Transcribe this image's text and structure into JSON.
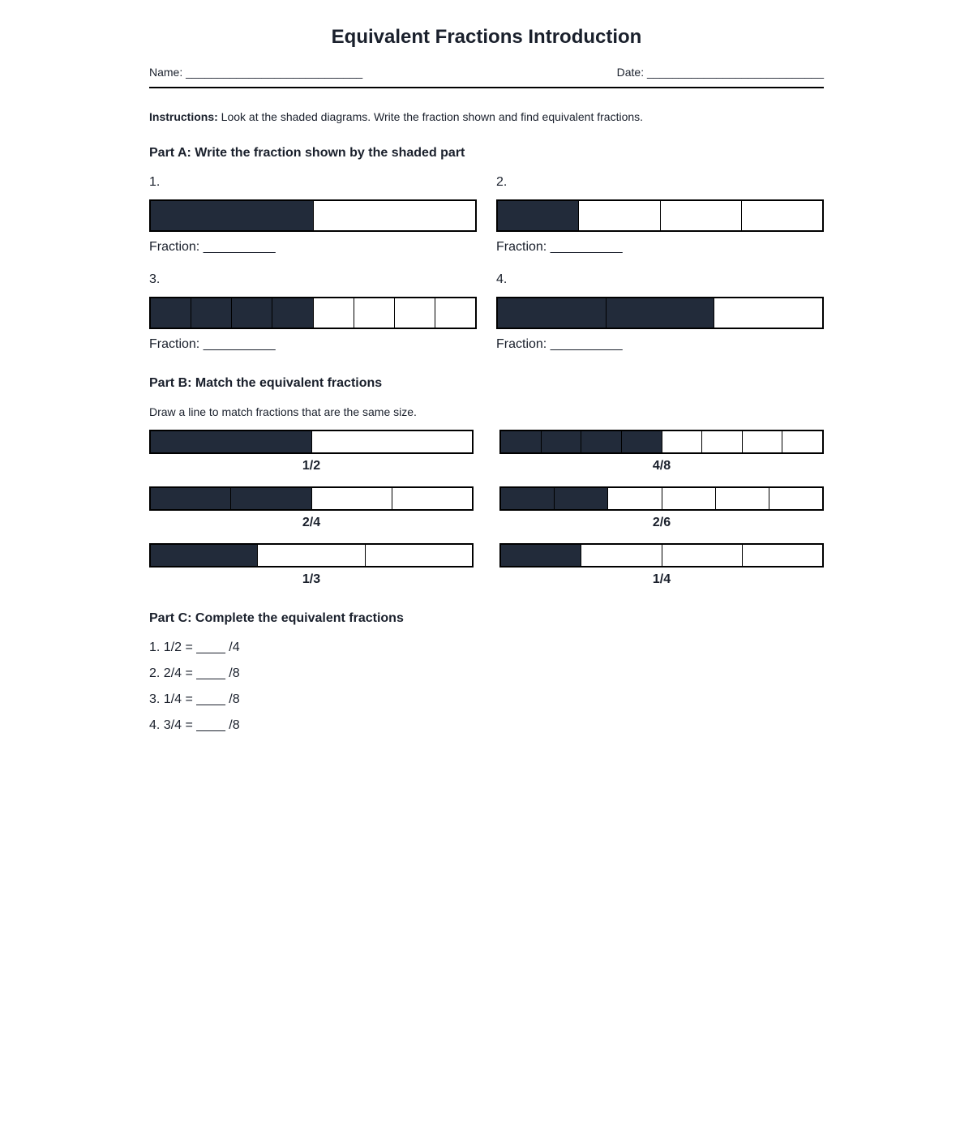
{
  "title": "Equivalent Fractions Introduction",
  "header": {
    "name": "Name: ____________________________",
    "date": "Date: ____________________________"
  },
  "instructions": {
    "label": "Instructions:",
    "text": " Look at the shaded diagrams. Write the fraction shown and find equivalent fractions."
  },
  "colors": {
    "shade": "#222b3a",
    "border": "#000000"
  },
  "partA": {
    "heading": "Part A: Write the fraction shown by the shaded part",
    "items": [
      {
        "number": "1.",
        "parts": 2,
        "shaded": 1,
        "answer": "Fraction: __________"
      },
      {
        "number": "2.",
        "parts": 4,
        "shaded": 1,
        "answer": "Fraction: __________"
      },
      {
        "number": "3.",
        "parts": 8,
        "shaded": 4,
        "answer": "Fraction: __________"
      },
      {
        "number": "4.",
        "parts": 3,
        "shaded": 2,
        "answer": "Fraction: __________"
      }
    ]
  },
  "partB": {
    "heading": "Part B: Match the equivalent fractions",
    "subtext": "Draw a line to match fractions that are the same size.",
    "left": [
      {
        "label": "1/2",
        "parts": 2,
        "shaded": 1
      },
      {
        "label": "2/4",
        "parts": 4,
        "shaded": 2
      },
      {
        "label": "1/3",
        "parts": 3,
        "shaded": 1
      }
    ],
    "right": [
      {
        "label": "4/8",
        "parts": 8,
        "shaded": 4
      },
      {
        "label": "2/6",
        "parts": 6,
        "shaded": 2
      },
      {
        "label": "1/4",
        "parts": 4,
        "shaded": 1
      }
    ]
  },
  "partC": {
    "heading": "Part C: Complete the equivalent fractions",
    "items": [
      "1. 1/2 = ____ /4",
      "2. 2/4 = ____ /8",
      "3. 1/4 = ____ /8",
      "4. 3/4 = ____ /8"
    ]
  }
}
